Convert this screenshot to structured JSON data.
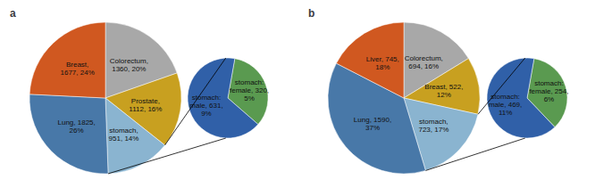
{
  "chart_data": [
    {
      "type": "pie",
      "title": "a",
      "values": [
        1360,
        1112,
        951,
        1825,
        1677
      ],
      "value_labels": [
        "Colorectum,\n1360, 20%",
        "Prostate,\n1112, 16%",
        "stomach,\n951, 14%",
        "Lung, 1825,\n26%",
        "Breast,\n1677, 24%"
      ],
      "colors": [
        "#a8a8a8",
        "#c8a020",
        "#8ab4d0",
        "#4878a8",
        "#d05820"
      ]
    },
    {
      "type": "pie",
      "values": [
        320,
        631
      ],
      "value_labels": [
        "stomach:\nfemale, 320,\n5%",
        "stomach:\nmale, 631,\n9%"
      ],
      "colors": [
        "#5a9a50",
        "#3060a8"
      ]
    },
    {
      "type": "pie",
      "title": "b",
      "values": [
        694,
        522,
        723,
        1590,
        745
      ],
      "value_labels": [
        "Colorectum,\n694, 16%",
        "Breast, 522,\n12%",
        "stomach,\n723, 17%",
        "Lung, 1590,\n37%",
        "Liver, 745,\n18%"
      ],
      "colors": [
        "#a8a8a8",
        "#c8a020",
        "#8ab4d0",
        "#4878a8",
        "#d05820"
      ]
    },
    {
      "type": "pie",
      "values": [
        254,
        469
      ],
      "value_labels": [
        "stomach:\nfemale, 254,\n6%",
        "stomach:\nmale, 469,\n11%"
      ],
      "colors": [
        "#5a9a50",
        "#3060a8"
      ]
    }
  ]
}
